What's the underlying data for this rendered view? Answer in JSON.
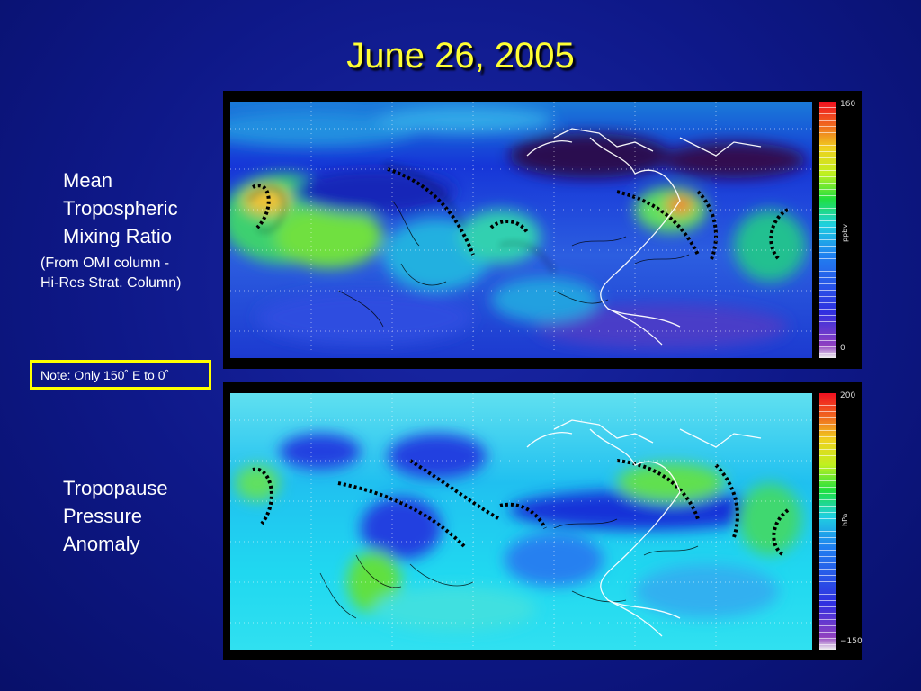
{
  "title": "June 26, 2005",
  "top_panel": {
    "heading_lines": [
      "Mean",
      "Tropospheric",
      "Mixing Ratio"
    ],
    "sub_lines": [
      "(From OMI column -",
      "Hi-Res Strat. Column)"
    ],
    "colorbar": {
      "max": "160",
      "min": "0",
      "unit": "ppbv"
    }
  },
  "note": "Note: Only 150˚ E to 0˚",
  "bottom_panel": {
    "heading_lines": [
      "Tropopause",
      "Pressure",
      "Anomaly"
    ],
    "colorbar": {
      "max": "200",
      "min": "−150",
      "unit": "hPa"
    }
  }
}
